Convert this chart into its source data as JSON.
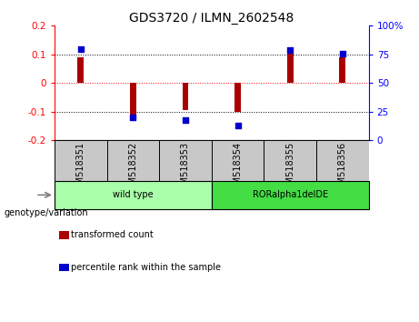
{
  "title": "GDS3720 / ILMN_2602548",
  "categories": [
    "GSM518351",
    "GSM518352",
    "GSM518353",
    "GSM518354",
    "GSM518355",
    "GSM518356"
  ],
  "red_bars": [
    0.09,
    -0.12,
    -0.095,
    -0.1,
    0.11,
    0.09
  ],
  "blue_dots": [
    80,
    20,
    18,
    13,
    79,
    76
  ],
  "ylim_left": [
    -0.2,
    0.2
  ],
  "ylim_right": [
    0,
    100
  ],
  "yticks_left": [
    -0.2,
    -0.1,
    0.0,
    0.1,
    0.2
  ],
  "ytick_labels_left": [
    "-0.2",
    "-0.1",
    "0",
    "0.1",
    "0.2"
  ],
  "yticks_right": [
    0,
    25,
    50,
    75,
    100
  ],
  "ytick_labels_right": [
    "0",
    "25",
    "50",
    "75",
    "100%"
  ],
  "hlines": [
    -0.1,
    0.0,
    0.1
  ],
  "hline_colors": [
    "black",
    "red",
    "black"
  ],
  "hline_styles": [
    "dotted",
    "dotted",
    "dotted"
  ],
  "bar_color": "#AA0000",
  "dot_color": "#0000CC",
  "group_labels": [
    "wild type",
    "RORalpha1delDE"
  ],
  "group_ranges": [
    [
      0,
      3
    ],
    [
      3,
      6
    ]
  ],
  "group_colors": [
    "#AAFFAA",
    "#44DD44"
  ],
  "genotype_label": "genotype/variation",
  "legend_items": [
    {
      "label": "transformed count",
      "color": "#AA0000"
    },
    {
      "label": "percentile rank within the sample",
      "color": "#0000CC"
    }
  ],
  "bar_width": 0.12,
  "dot_size": 18,
  "title_fontsize": 10,
  "tick_fontsize": 7.5,
  "label_fontsize": 7
}
